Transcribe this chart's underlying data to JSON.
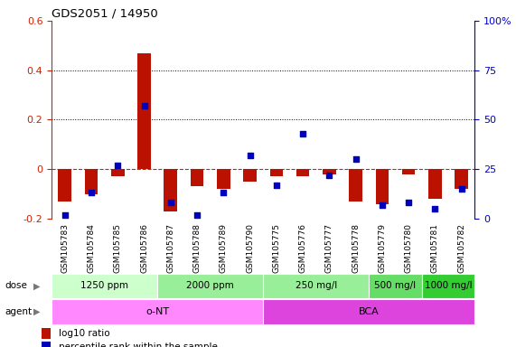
{
  "title": "GDS2051 / 14950",
  "samples": [
    "GSM105783",
    "GSM105784",
    "GSM105785",
    "GSM105786",
    "GSM105787",
    "GSM105788",
    "GSM105789",
    "GSM105790",
    "GSM105775",
    "GSM105776",
    "GSM105777",
    "GSM105778",
    "GSM105779",
    "GSM105780",
    "GSM105781",
    "GSM105782"
  ],
  "log10_ratio": [
    -0.13,
    -0.1,
    -0.03,
    0.47,
    -0.17,
    -0.07,
    -0.08,
    -0.05,
    -0.03,
    -0.03,
    -0.02,
    -0.13,
    -0.14,
    -0.02,
    -0.12,
    -0.08
  ],
  "percentile_rank_pct": [
    2,
    13,
    27,
    57,
    8,
    2,
    13,
    32,
    17,
    43,
    22,
    30,
    7,
    8,
    5,
    15
  ],
  "ylim_left": [
    -0.2,
    0.6
  ],
  "ylim_right": [
    0,
    100
  ],
  "yticks_left": [
    -0.2,
    0.0,
    0.2,
    0.4,
    0.6
  ],
  "yticks_right": [
    0,
    25,
    50,
    75,
    100
  ],
  "ytick_labels_left": [
    "-0.2",
    "0",
    "0.2",
    "0.4",
    "0.6"
  ],
  "ytick_labels_right": [
    "0",
    "25",
    "50",
    "75",
    "100%"
  ],
  "dose_groups": [
    {
      "label": "1250 ppm",
      "start": 0,
      "end": 4,
      "color": "#ccffcc"
    },
    {
      "label": "2000 ppm",
      "start": 4,
      "end": 8,
      "color": "#99ee99"
    },
    {
      "label": "250 mg/l",
      "start": 8,
      "end": 12,
      "color": "#99ee99"
    },
    {
      "label": "500 mg/l",
      "start": 12,
      "end": 14,
      "color": "#66dd66"
    },
    {
      "label": "1000 mg/l",
      "start": 14,
      "end": 16,
      "color": "#33cc33"
    }
  ],
  "agent_groups": [
    {
      "label": "o-NT",
      "start": 0,
      "end": 8,
      "color": "#ff88ff"
    },
    {
      "label": "BCA",
      "start": 8,
      "end": 16,
      "color": "#dd44dd"
    }
  ],
  "bar_color": "#bb1100",
  "point_color": "#0000bb",
  "hline_color": "#cc2200",
  "grid_color": "#000000",
  "label_color_left": "#cc2200",
  "label_color_right": "#0000cc",
  "xlabel_bg_color": "#cccccc",
  "xlabel_line_color": "#ffffff"
}
